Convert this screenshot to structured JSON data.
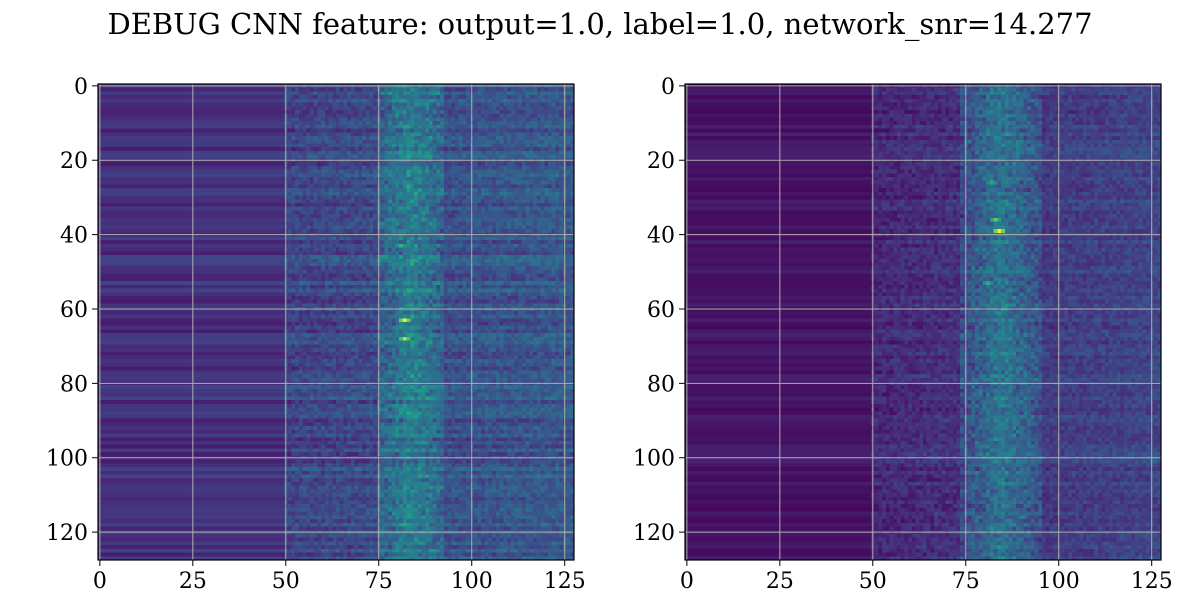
{
  "figure": {
    "title": "DEBUG CNN feature: output=1.0, label=1.0, network_snr=14.277"
  },
  "chart_data": [
    {
      "type": "heatmap",
      "title": "",
      "xlabel": "",
      "ylabel": "",
      "shape": [
        128,
        128
      ],
      "xlim": [
        -0.5,
        127.5
      ],
      "ylim": [
        127.5,
        -0.5
      ],
      "xticks": [
        0,
        25,
        50,
        75,
        100,
        125
      ],
      "yticks": [
        0,
        20,
        40,
        60,
        80,
        100,
        120
      ],
      "grid": true,
      "colormap": "viridis",
      "description_values": {
        "background_columns_0_48": "low, row-striped",
        "feature_band_columns": [
          75,
          92
        ],
        "hotspots": [
          {
            "x": 82,
            "y": 63,
            "intensity": 1.0
          },
          {
            "x": 82,
            "y": 68,
            "intensity": 0.9
          },
          {
            "x": 81,
            "y": 43,
            "intensity": 0.65
          },
          {
            "x": 83,
            "y": 27,
            "intensity": 0.6
          },
          {
            "x": 82,
            "y": 86,
            "intensity": 0.55
          },
          {
            "x": 79,
            "y": 16,
            "intensity": 0.5
          }
        ]
      }
    },
    {
      "type": "heatmap",
      "title": "",
      "xlabel": "",
      "ylabel": "",
      "shape": [
        128,
        128
      ],
      "xlim": [
        -0.5,
        127.5
      ],
      "ylim": [
        127.5,
        -0.5
      ],
      "xticks": [
        0,
        25,
        50,
        75,
        100,
        125
      ],
      "yticks": [
        0,
        20,
        40,
        60,
        80,
        100,
        120
      ],
      "grid": true,
      "colormap": "viridis",
      "description_values": {
        "background_columns_0_48": "very low, row-striped",
        "feature_band_columns": [
          74,
          95
        ],
        "hotspots": [
          {
            "x": 84,
            "y": 39,
            "intensity": 1.0
          },
          {
            "x": 83,
            "y": 36,
            "intensity": 0.75
          },
          {
            "x": 82,
            "y": 26,
            "intensity": 0.6
          },
          {
            "x": 81,
            "y": 53,
            "intensity": 0.6
          },
          {
            "x": 83,
            "y": 95,
            "intensity": 0.5
          },
          {
            "x": 82,
            "y": 119,
            "intensity": 0.5
          }
        ]
      }
    }
  ]
}
